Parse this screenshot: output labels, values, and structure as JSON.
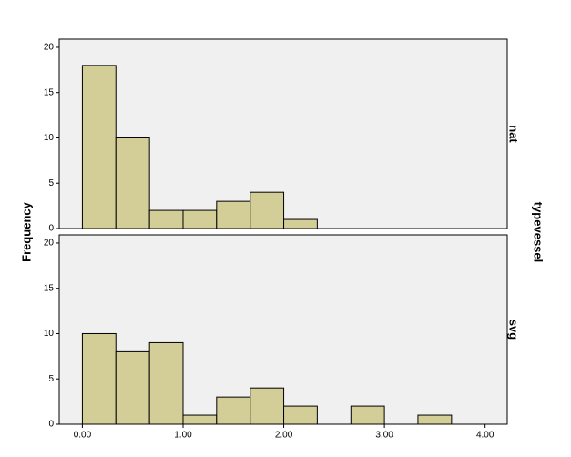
{
  "chart_data": {
    "type": "histogram",
    "y_label": "Frequency",
    "panel_title": "typevessel",
    "color": "#d3ce97",
    "bins": [
      0,
      0.333,
      0.667,
      1,
      1.333,
      1.667,
      2,
      2.333,
      2.667,
      3,
      3.333,
      3.667
    ],
    "xlim": [
      -0.23,
      4.22
    ],
    "xticks": [
      {
        "value": 0,
        "label": "0.00"
      },
      {
        "value": 1,
        "label": "1.00"
      },
      {
        "value": 2,
        "label": "2.00"
      },
      {
        "value": 3,
        "label": "3.00"
      },
      {
        "value": 4,
        "label": "4.00"
      }
    ],
    "ylim": [
      0,
      20.9
    ],
    "yticks": [
      0,
      5,
      10,
      15,
      20
    ],
    "panels": [
      {
        "label": "nat",
        "values": [
          18,
          10,
          2,
          2,
          3,
          4,
          1,
          0,
          0,
          0,
          0
        ]
      },
      {
        "label": "svg",
        "values": [
          10,
          8,
          9,
          1,
          3,
          4,
          2,
          0,
          2,
          0,
          1
        ]
      }
    ]
  }
}
